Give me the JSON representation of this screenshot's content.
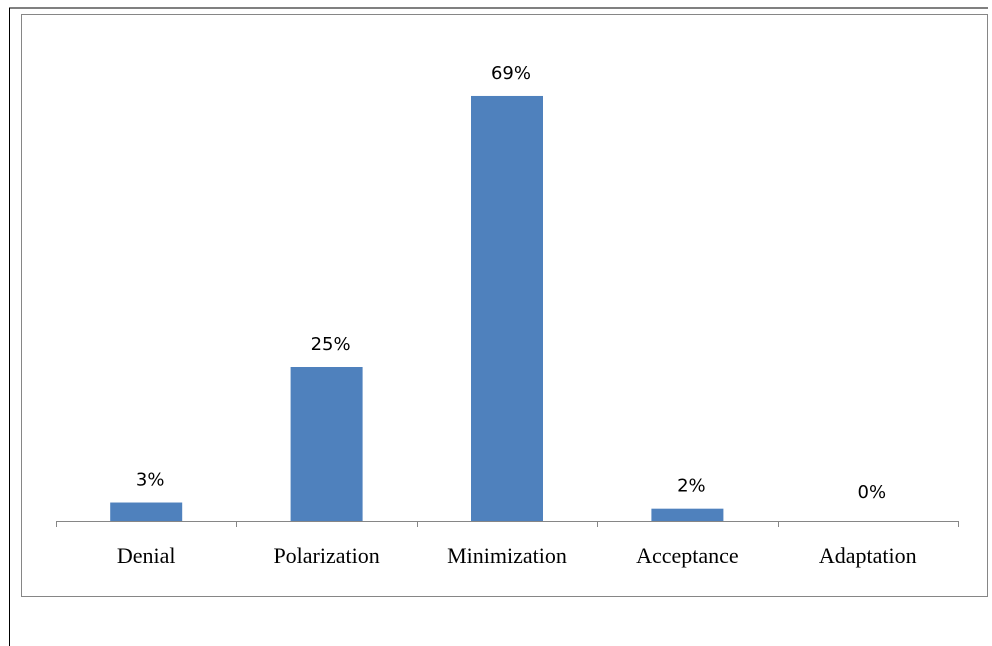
{
  "chart_data": {
    "type": "bar",
    "categories": [
      "Denial",
      "Polarization",
      "Minimization",
      "Acceptance",
      "Adaptation"
    ],
    "values": [
      3,
      25,
      69,
      2,
      0
    ],
    "data_labels": [
      "3%",
      "25%",
      "69%",
      "2%",
      "0%"
    ],
    "title": "",
    "xlabel": "",
    "ylabel": "",
    "ylim": [
      0,
      80
    ],
    "unit": "%",
    "grid": false,
    "legend": "none",
    "bar_color": "#4f81bd",
    "axis_color": "#868686",
    "frame_color": "#868686"
  }
}
